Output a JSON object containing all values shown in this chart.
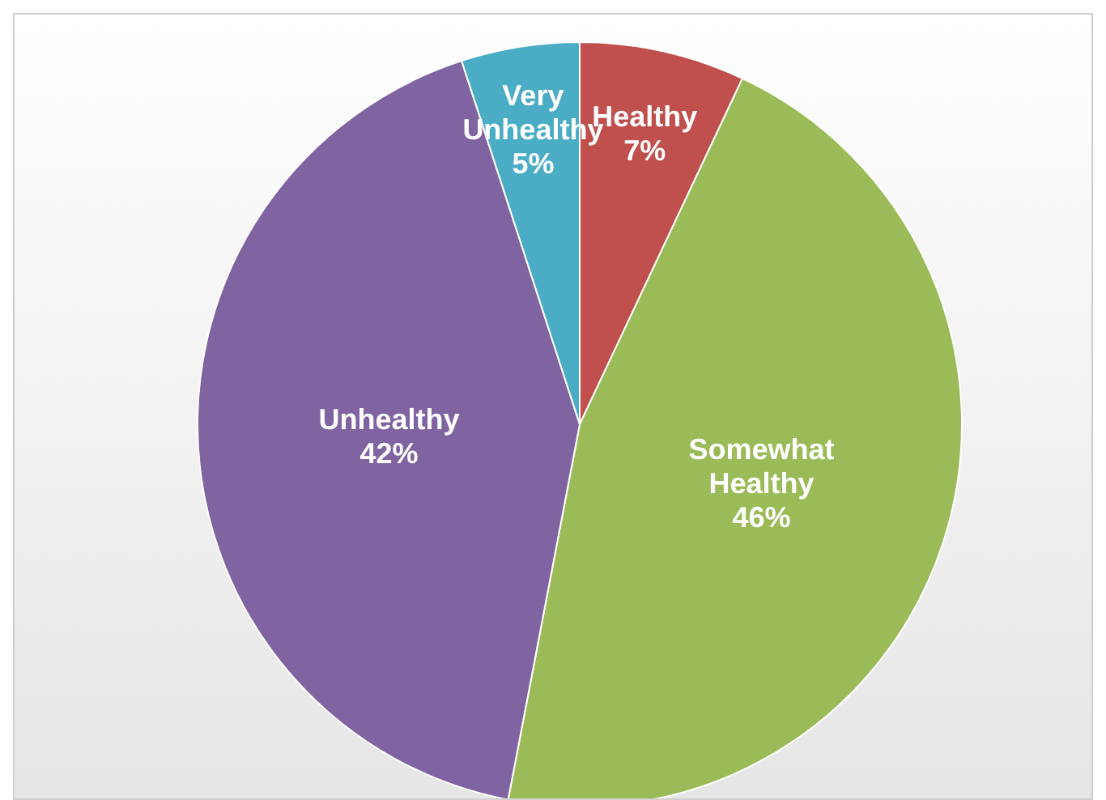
{
  "chart_data": {
    "type": "pie",
    "categories": [
      "Healthy",
      "Somewhat Healthy",
      "Unhealthy",
      "Very Unhealthy"
    ],
    "values": [
      7,
      46,
      42,
      5
    ],
    "colors": [
      "#c0504d",
      "#9bbb59",
      "#8064a2",
      "#4bacc6"
    ],
    "value_labels": [
      "7%",
      "46%",
      "42%",
      "5%"
    ],
    "legend": false
  }
}
